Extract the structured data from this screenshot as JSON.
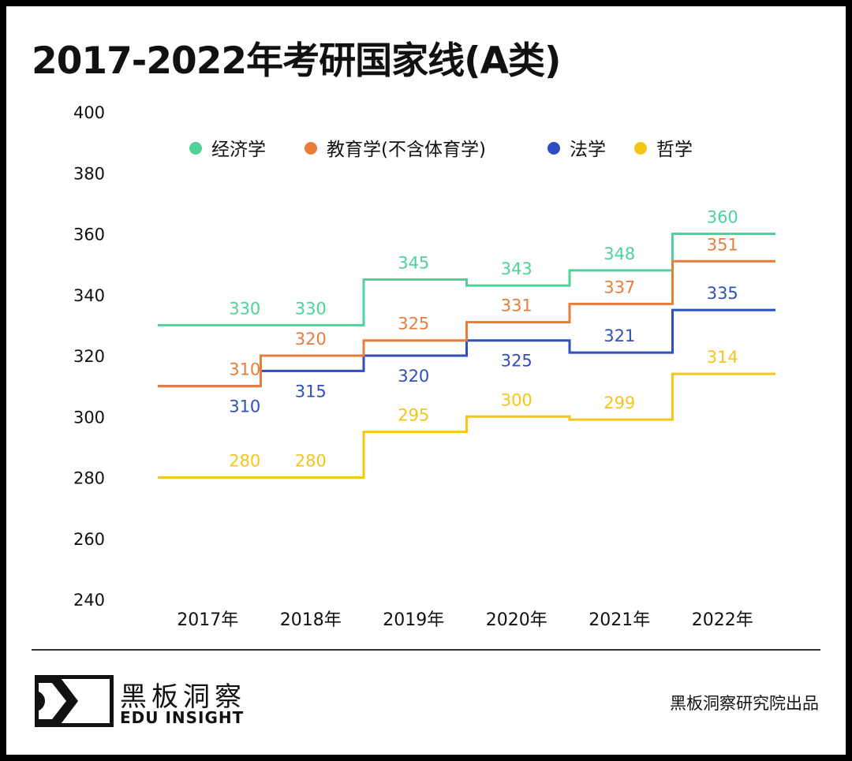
{
  "title": "2017-2022年考研国家线(A类)",
  "chart_data": {
    "type": "line",
    "step": true,
    "title": "2017-2022年考研国家线(A类)",
    "categories": [
      "2017年",
      "2018年",
      "2019年",
      "2020年",
      "2021年",
      "2022年"
    ],
    "ylim": [
      240,
      400
    ],
    "yticks": [
      400,
      380,
      360,
      340,
      320,
      300,
      280,
      260,
      240
    ],
    "grid": false,
    "legend_position": "top",
    "series": [
      {
        "name": "法学",
        "color": "#2e4fc0",
        "values": [
          310,
          315,
          320,
          325,
          321,
          335
        ]
      },
      {
        "name": "经济学",
        "color": "#4dd39a",
        "values": [
          330,
          330,
          345,
          343,
          348,
          360
        ]
      },
      {
        "name": "教育学(不含体育学)",
        "color": "#ea7c3a",
        "values": [
          310,
          320,
          325,
          331,
          337,
          351
        ]
      },
      {
        "name": "哲学",
        "color": "#f5c518",
        "values": [
          280,
          280,
          295,
          300,
          299,
          314
        ]
      }
    ]
  },
  "legend_order": [
    1,
    2,
    0,
    3
  ],
  "footer": {
    "brand_cn": "黑板洞察",
    "brand_en": "EDU INSIGHT",
    "source": "黑板洞察研究院出品"
  }
}
